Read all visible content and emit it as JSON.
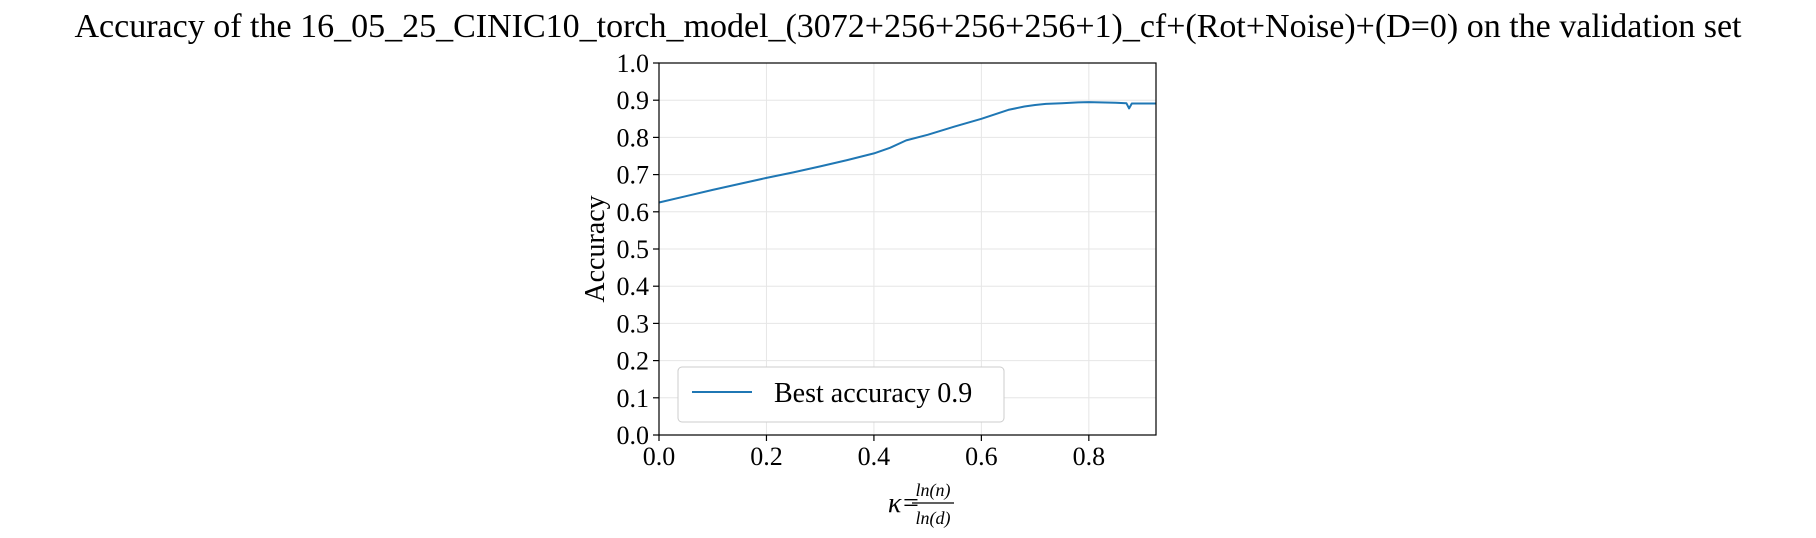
{
  "chart_data": {
    "type": "line",
    "title": "Accuracy of the 16_05_25_CINIC10_torch_model_(3072+256+256+256+1)_cf+(Rot+Noise)+(D=0) on the validation set",
    "xlabel_prefix": "κ=",
    "xlabel_num": "ln(n)",
    "xlabel_den": "ln(d)",
    "ylabel": "Accuracy",
    "xlim": [
      0.0,
      0.925
    ],
    "ylim": [
      0.0,
      1.0
    ],
    "xticks": [
      "0.0",
      "0.2",
      "0.4",
      "0.6",
      "0.8"
    ],
    "xtick_values": [
      0.0,
      0.2,
      0.4,
      0.6,
      0.8
    ],
    "yticks": [
      "0.0",
      "0.1",
      "0.2",
      "0.3",
      "0.4",
      "0.5",
      "0.6",
      "0.7",
      "0.8",
      "0.9",
      "1.0"
    ],
    "ytick_values": [
      0.0,
      0.1,
      0.2,
      0.3,
      0.4,
      0.5,
      0.6,
      0.7,
      0.8,
      0.9,
      1.0
    ],
    "grid": true,
    "legend_position": "lower-left",
    "series": [
      {
        "name": "Best accuracy 0.9",
        "color": "#1f77b4",
        "x": [
          0.0,
          0.05,
          0.1,
          0.15,
          0.2,
          0.25,
          0.3,
          0.35,
          0.4,
          0.43,
          0.46,
          0.5,
          0.55,
          0.6,
          0.65,
          0.68,
          0.7,
          0.72,
          0.75,
          0.78,
          0.8,
          0.82,
          0.85,
          0.87,
          0.875,
          0.88,
          0.9,
          0.925
        ],
        "y": [
          0.625,
          0.642,
          0.659,
          0.675,
          0.691,
          0.706,
          0.722,
          0.739,
          0.757,
          0.772,
          0.792,
          0.807,
          0.829,
          0.85,
          0.874,
          0.883,
          0.887,
          0.89,
          0.892,
          0.894,
          0.895,
          0.894,
          0.893,
          0.892,
          0.878,
          0.891,
          0.891,
          0.891
        ]
      }
    ]
  }
}
